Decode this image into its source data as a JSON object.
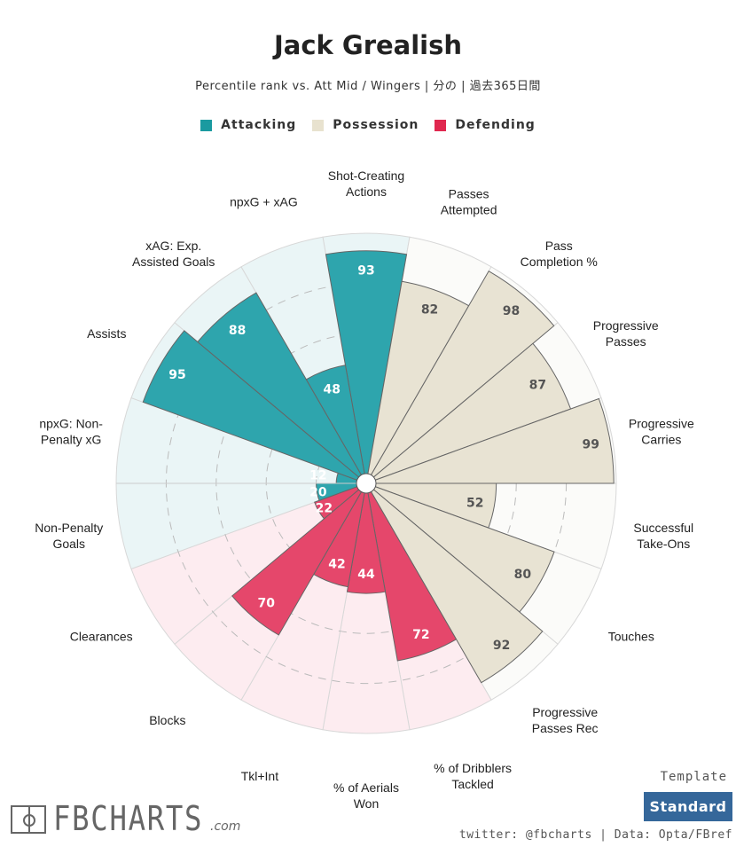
{
  "header": {
    "title": "Jack Grealish",
    "subtitle": "Percentile rank vs. Att Mid / Wingers | 分の | 過去365日間"
  },
  "legend": [
    {
      "label": "Attacking",
      "color": "#1a9aa0"
    },
    {
      "label": "Possession",
      "color": "#e8e2cf"
    },
    {
      "label": "Defending",
      "color": "#e0284f"
    }
  ],
  "chart_data": {
    "type": "pizza",
    "title": "Jack Grealish",
    "range": [
      0,
      100
    ],
    "gridlines": [
      20,
      40,
      60,
      80
    ],
    "categories": [
      {
        "label": "Shot-Creating\nActions",
        "value": 93,
        "group": "Attacking"
      },
      {
        "label": "Passes\nAttempted",
        "value": 82,
        "group": "Possession"
      },
      {
        "label": "Pass\nCompletion %",
        "value": 98,
        "group": "Possession"
      },
      {
        "label": "Progressive\nPasses",
        "value": 87,
        "group": "Possession"
      },
      {
        "label": "Progressive\nCarries",
        "value": 99,
        "group": "Possession"
      },
      {
        "label": "Successful\nTake-Ons",
        "value": 52,
        "group": "Possession"
      },
      {
        "label": "Touches",
        "value": 80,
        "group": "Possession"
      },
      {
        "label": "Progressive\nPasses Rec",
        "value": 92,
        "group": "Possession"
      },
      {
        "label": "% of Dribblers\nTackled",
        "value": 72,
        "group": "Defending"
      },
      {
        "label": "% of Aerials\nWon",
        "value": 44,
        "group": "Defending"
      },
      {
        "label": "Tkl+Int",
        "value": 42,
        "group": "Defending"
      },
      {
        "label": "Blocks",
        "value": 70,
        "group": "Defending"
      },
      {
        "label": "Clearances",
        "value": 22,
        "group": "Defending"
      },
      {
        "label": "Non-Penalty\nGoals",
        "value": 20,
        "group": "Attacking"
      },
      {
        "label": "npxG: Non-\nPenalty xG",
        "value": 12,
        "group": "Attacking"
      },
      {
        "label": "Assists",
        "value": 95,
        "group": "Attacking"
      },
      {
        "label": "xAG: Exp.\nAssisted Goals",
        "value": 88,
        "group": "Attacking"
      },
      {
        "label": "npxG + xAG",
        "value": 48,
        "group": "Attacking"
      }
    ],
    "colors": {
      "Attacking": {
        "bar": "#2ea5ad",
        "bg": "#eaf5f6",
        "text": "#ffffff"
      },
      "Possession": {
        "bar": "#e8e3d3",
        "bg": "#fbfbf9",
        "text": "#555555"
      },
      "Defending": {
        "bar": "#e5476b",
        "bg": "#fdecf0",
        "text": "#ffffff"
      }
    }
  },
  "footer": {
    "template_label": "Template",
    "template_value": "Standard",
    "credit": "twitter: @fbcharts | Data: Opta/FBref",
    "logo": "FBCHARTS.com"
  }
}
